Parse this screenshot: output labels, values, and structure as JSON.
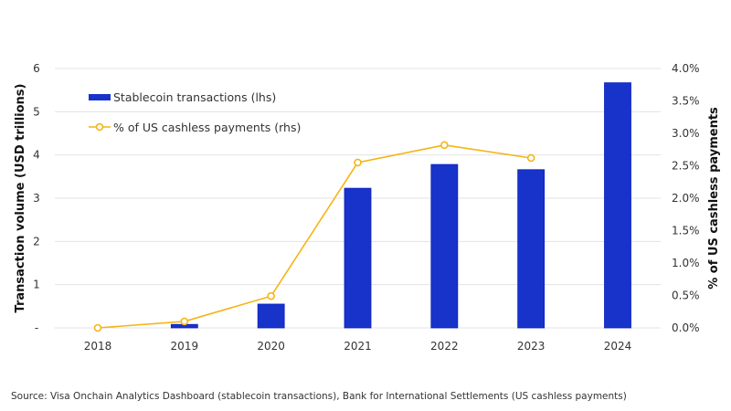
{
  "chart_data": {
    "type": "bar+line",
    "categories": [
      "2018",
      "2019",
      "2020",
      "2021",
      "2022",
      "2023",
      "2024"
    ],
    "series": [
      {
        "name": "Stablecoin transactions (lhs)",
        "type": "bar",
        "axis": "left",
        "color": "#1733c9",
        "values": [
          0,
          0.08,
          0.55,
          3.23,
          3.78,
          3.66,
          5.67
        ]
      },
      {
        "name": "% of US cashless payments (rhs)",
        "type": "line",
        "axis": "right",
        "color": "#f5b416",
        "values": [
          0.0,
          0.1,
          0.49,
          2.55,
          2.82,
          2.62,
          null
        ]
      }
    ],
    "ylabel": "Transaction volume (USD trillions)",
    "y2label": "% of US cashless payments",
    "ylim": [
      0,
      6
    ],
    "y2lim": [
      0,
      4
    ],
    "yticks": [
      "-",
      "1",
      "2",
      "3",
      "4",
      "5",
      "6"
    ],
    "y2ticks": [
      "0.0%",
      "0.5%",
      "1.0%",
      "1.5%",
      "2.0%",
      "2.5%",
      "3.0%",
      "3.5%",
      "4.0%"
    ],
    "grid": true,
    "legend_position": "top-left"
  },
  "source": "Source: Visa Onchain Analytics Dashboard (stablecoin transactions), Bank for International Settlements (US cashless payments)"
}
